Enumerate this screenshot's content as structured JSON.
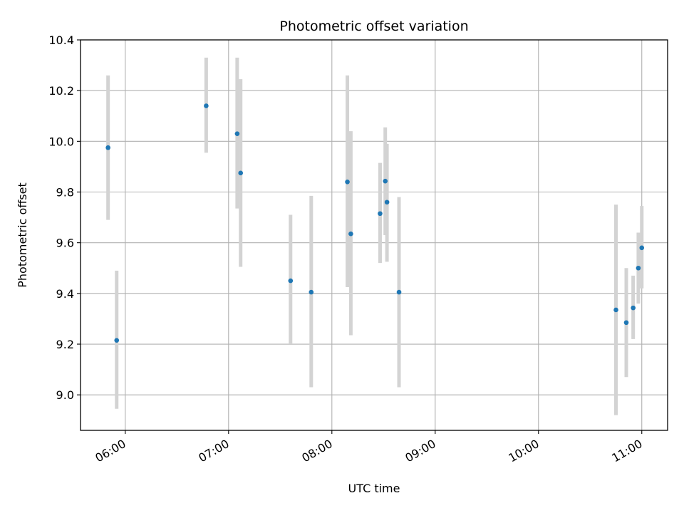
{
  "chart_data": {
    "type": "scatter",
    "title": "Photometric offset variation",
    "xlabel": "UTC time",
    "ylabel": "Photometric offset",
    "xlim": [
      "05:34",
      "11:15"
    ],
    "ylim": [
      8.86,
      10.4
    ],
    "x_ticks": [
      "06:00",
      "07:00",
      "08:00",
      "09:00",
      "10:00",
      "11:00"
    ],
    "y_ticks": [
      "9.0",
      "9.2",
      "9.4",
      "9.6",
      "9.8",
      "10.0",
      "10.2",
      "10.4"
    ],
    "grid": true,
    "errorbar_color": "#d3d3d3",
    "point_color": "#1f77b4",
    "points": [
      {
        "x": "05:50",
        "y": 9.975,
        "ylow": 9.69,
        "yhigh": 10.26
      },
      {
        "x": "05:55",
        "y": 9.215,
        "ylow": 8.945,
        "yhigh": 9.49
      },
      {
        "x": "06:47",
        "y": 10.14,
        "ylow": 9.955,
        "yhigh": 10.33
      },
      {
        "x": "07:05",
        "y": 10.03,
        "ylow": 9.735,
        "yhigh": 10.33
      },
      {
        "x": "07:07",
        "y": 9.875,
        "ylow": 9.505,
        "yhigh": 10.245
      },
      {
        "x": "07:36",
        "y": 9.45,
        "ylow": 9.2,
        "yhigh": 9.71
      },
      {
        "x": "07:48",
        "y": 9.405,
        "ylow": 9.03,
        "yhigh": 9.785
      },
      {
        "x": "08:09",
        "y": 9.84,
        "ylow": 9.425,
        "yhigh": 10.26
      },
      {
        "x": "08:11",
        "y": 9.635,
        "ylow": 9.235,
        "yhigh": 10.04
      },
      {
        "x": "08:28",
        "y": 9.715,
        "ylow": 9.52,
        "yhigh": 9.915
      },
      {
        "x": "08:31",
        "y": 9.843,
        "ylow": 9.63,
        "yhigh": 10.055
      },
      {
        "x": "08:32",
        "y": 9.76,
        "ylow": 9.525,
        "yhigh": 9.99
      },
      {
        "x": "08:39",
        "y": 9.405,
        "ylow": 9.03,
        "yhigh": 9.78
      },
      {
        "x": "10:45",
        "y": 9.335,
        "ylow": 8.92,
        "yhigh": 9.75
      },
      {
        "x": "10:51",
        "y": 9.285,
        "ylow": 9.07,
        "yhigh": 9.5
      },
      {
        "x": "10:55",
        "y": 9.343,
        "ylow": 9.22,
        "yhigh": 9.47
      },
      {
        "x": "10:58",
        "y": 9.5,
        "ylow": 9.36,
        "yhigh": 9.64
      },
      {
        "x": "11:00",
        "y": 9.58,
        "ylow": 9.42,
        "yhigh": 9.745
      }
    ]
  }
}
